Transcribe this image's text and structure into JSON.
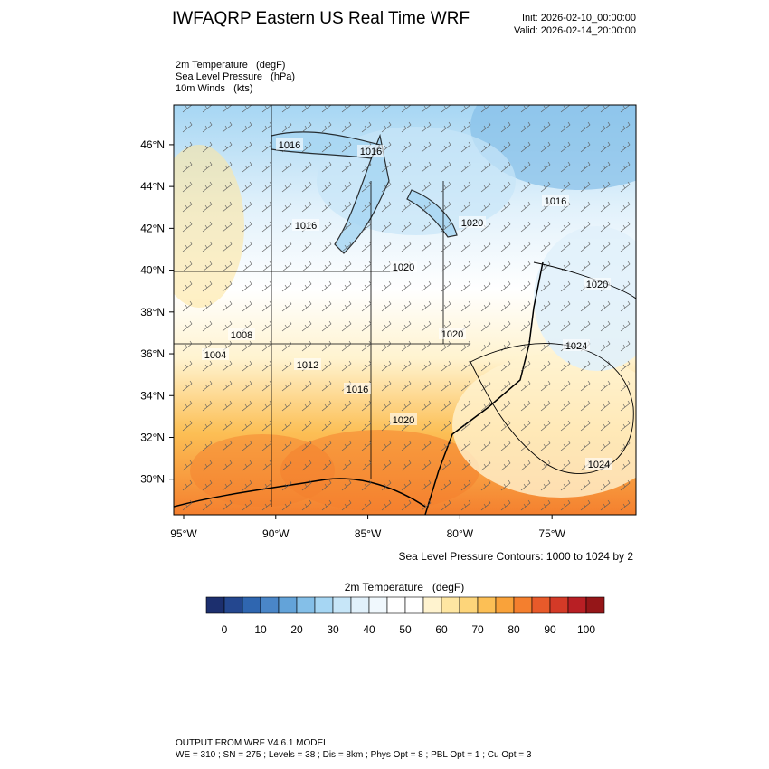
{
  "header": {
    "title": "IWFAQRP Eastern US Real Time WRF",
    "init": "Init: 2026-02-10_00:00:00",
    "valid": "Valid: 2026-02-14_20:00:00"
  },
  "fields": [
    "2m Temperature   (degF)",
    "Sea Level Pressure   (hPa)",
    "10m Winds   (kts)"
  ],
  "map": {
    "xlim": [
      -95.54,
      -70.44
    ],
    "ylim": [
      28.3,
      47.9
    ],
    "yticks": [
      {
        "value": 46,
        "label": "46°N"
      },
      {
        "value": 44,
        "label": "44°N"
      },
      {
        "value": 42,
        "label": "42°N"
      },
      {
        "value": 40,
        "label": "40°N"
      },
      {
        "value": 38,
        "label": "38°N"
      },
      {
        "value": 36,
        "label": "36°N"
      },
      {
        "value": 34,
        "label": "34°N"
      },
      {
        "value": 32,
        "label": "32°N"
      },
      {
        "value": 30,
        "label": "30°N"
      }
    ],
    "xticks": [
      {
        "value": -95,
        "label": "95°W"
      },
      {
        "value": -90,
        "label": "90°W"
      },
      {
        "value": -85,
        "label": "85°W"
      },
      {
        "value": -80,
        "label": "80°W"
      },
      {
        "value": -75,
        "label": "75°W"
      }
    ],
    "contour_labels": [
      1016,
      1016,
      1016,
      1020,
      1016,
      1020,
      1020,
      1008,
      1004,
      1020,
      1024,
      1012,
      1016,
      1020,
      1024
    ],
    "contour_note": "Sea Level Pressure Contours: 1000 to 1024 by 2"
  },
  "colorbar": {
    "title": "2m Temperature   (degF)",
    "ticks": [
      0,
      10,
      20,
      30,
      40,
      50,
      60,
      70,
      80,
      90,
      100
    ],
    "colors": [
      "#1c2f6e",
      "#24478f",
      "#2f66b0",
      "#4a86c8",
      "#63a3d9",
      "#84bfe8",
      "#a6d6f3",
      "#c7e6f8",
      "#e1f1fb",
      "#f0f8fd",
      "#ffffff",
      "#ffffff",
      "#fff3cf",
      "#fee6a2",
      "#fdd57a",
      "#fcbf55",
      "#f9a23a",
      "#f47f2e",
      "#e85a2a",
      "#d43a27",
      "#b81f24",
      "#951618"
    ]
  },
  "footer": [
    "OUTPUT FROM WRF V4.6.1 MODEL",
    "WE = 310 ; SN = 275 ; Levels = 38 ; Dis = 8km ; Phys Opt = 8 ; PBL Opt = 1 ; Cu Opt = 3"
  ]
}
